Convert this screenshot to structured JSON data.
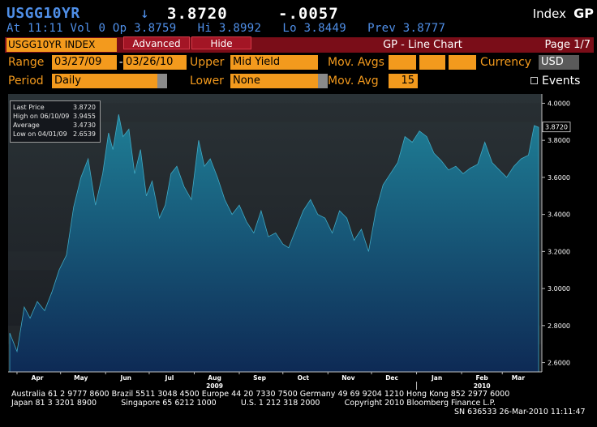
{
  "header": {
    "ticker": "USGG10YR",
    "arrow": "↓",
    "price": "3.8720",
    "change": "-.0057",
    "index_label": "Index",
    "index_code": "GP",
    "stats_line": "At 11:11 Vol 0 Op 3.8759   Hi 3.8992   Lo 3.8449   Prev 3.8777"
  },
  "tabbar": {
    "security": "USGG10YR INDEX",
    "advanced": "Advanced",
    "hide": "Hide",
    "title": "GP - Line Chart",
    "page": "Page 1/7"
  },
  "controls": {
    "range_label": "Range",
    "range_start": "03/27/09",
    "range_sep": "-",
    "range_end": "03/26/10",
    "upper_label": "Upper",
    "upper_value": "Mid Yield",
    "mov_avgs_label": "Mov. Avgs",
    "currency_label": "Currency",
    "currency_value": "USD",
    "period_label": "Period",
    "period_value": "Daily",
    "lower_label": "Lower",
    "lower_value": "None",
    "mov_avg_label": "Mov. Avg",
    "mov_avg_value": "15",
    "events_label": "Events"
  },
  "legend": {
    "rows": [
      {
        "label": "Last Price",
        "value": "3.8720"
      },
      {
        "label": "High on 06/10/09",
        "value": "3.9455"
      },
      {
        "label": "Average",
        "value": "3.4730"
      },
      {
        "label": "Low on 04/01/09",
        "value": "2.6539"
      }
    ]
  },
  "footer": {
    "line1": "Australia 61 2 9777 8600 Brazil 5511 3048 4500 Europe 44 20 7330 7500 Germany 49 69 9204 1210 Hong Kong 852 2977 6000",
    "line2": "Japan 81 3 3201 8900          Singapore 65 6212 1000          U.S. 1 212 318 2000          Copyright 2010 Bloomberg Finance L.P.",
    "line3": "SN 636533 26-Mar-2010 11:11:47"
  },
  "colors": {
    "background": "#000000",
    "orange": "#f39a1d",
    "blue_text": "#4f8fe8",
    "tab_red": "#7a0d18",
    "area_top": "#1f7f96",
    "area_bottom": "#0e2a55"
  },
  "chart_data": {
    "type": "area",
    "ylim": [
      2.55,
      4.05
    ],
    "yticks": [
      "4.0000",
      "3.8000",
      "3.6000",
      "3.4000",
      "3.2000",
      "3.0000",
      "2.8000",
      "2.6000"
    ],
    "ytick_values": [
      4.0,
      3.8,
      3.6,
      3.4,
      3.2,
      3.0,
      2.8,
      2.6
    ],
    "months": [
      "Apr",
      "May",
      "Jun",
      "Jul",
      "Aug",
      "Sep",
      "Oct",
      "Nov",
      "Dec",
      "Jan",
      "Feb",
      "Mar"
    ],
    "years": [
      "2009",
      "2010"
    ],
    "last_value_label": "3.8720",
    "last_value": 3.872,
    "x": [
      "2009-03-27",
      "2009-04-01",
      "2009-04-06",
      "2009-04-10",
      "2009-04-15",
      "2009-04-20",
      "2009-04-25",
      "2009-04-30",
      "2009-05-05",
      "2009-05-10",
      "2009-05-15",
      "2009-05-20",
      "2009-05-25",
      "2009-05-30",
      "2009-06-03",
      "2009-06-06",
      "2009-06-10",
      "2009-06-13",
      "2009-06-17",
      "2009-06-21",
      "2009-06-25",
      "2009-06-29",
      "2009-07-03",
      "2009-07-08",
      "2009-07-12",
      "2009-07-16",
      "2009-07-20",
      "2009-07-25",
      "2009-07-30",
      "2009-08-04",
      "2009-08-08",
      "2009-08-12",
      "2009-08-17",
      "2009-08-22",
      "2009-08-27",
      "2009-09-01",
      "2009-09-06",
      "2009-09-11",
      "2009-09-16",
      "2009-09-21",
      "2009-09-26",
      "2009-10-01",
      "2009-10-05",
      "2009-10-10",
      "2009-10-15",
      "2009-10-20",
      "2009-10-25",
      "2009-10-30",
      "2009-11-04",
      "2009-11-09",
      "2009-11-14",
      "2009-11-19",
      "2009-11-24",
      "2009-11-29",
      "2009-12-04",
      "2009-12-09",
      "2009-12-14",
      "2009-12-19",
      "2009-12-24",
      "2009-12-29",
      "2010-01-03",
      "2010-01-08",
      "2010-01-13",
      "2010-01-18",
      "2010-01-23",
      "2010-01-28",
      "2010-02-02",
      "2010-02-07",
      "2010-02-12",
      "2010-02-17",
      "2010-02-22",
      "2010-02-27",
      "2010-03-04",
      "2010-03-09",
      "2010-03-14",
      "2010-03-19",
      "2010-03-23",
      "2010-03-26"
    ],
    "values": [
      2.76,
      2.66,
      2.9,
      2.84,
      2.93,
      2.88,
      2.98,
      3.1,
      3.18,
      3.44,
      3.6,
      3.7,
      3.45,
      3.62,
      3.84,
      3.75,
      3.94,
      3.82,
      3.86,
      3.62,
      3.75,
      3.5,
      3.58,
      3.38,
      3.45,
      3.62,
      3.66,
      3.55,
      3.48,
      3.8,
      3.66,
      3.7,
      3.6,
      3.48,
      3.4,
      3.45,
      3.36,
      3.3,
      3.42,
      3.28,
      3.3,
      3.24,
      3.22,
      3.32,
      3.42,
      3.48,
      3.4,
      3.38,
      3.3,
      3.42,
      3.38,
      3.26,
      3.32,
      3.2,
      3.42,
      3.56,
      3.62,
      3.68,
      3.82,
      3.79,
      3.85,
      3.82,
      3.73,
      3.69,
      3.64,
      3.66,
      3.62,
      3.65,
      3.67,
      3.79,
      3.68,
      3.64,
      3.6,
      3.66,
      3.7,
      3.72,
      3.88,
      3.87
    ]
  }
}
